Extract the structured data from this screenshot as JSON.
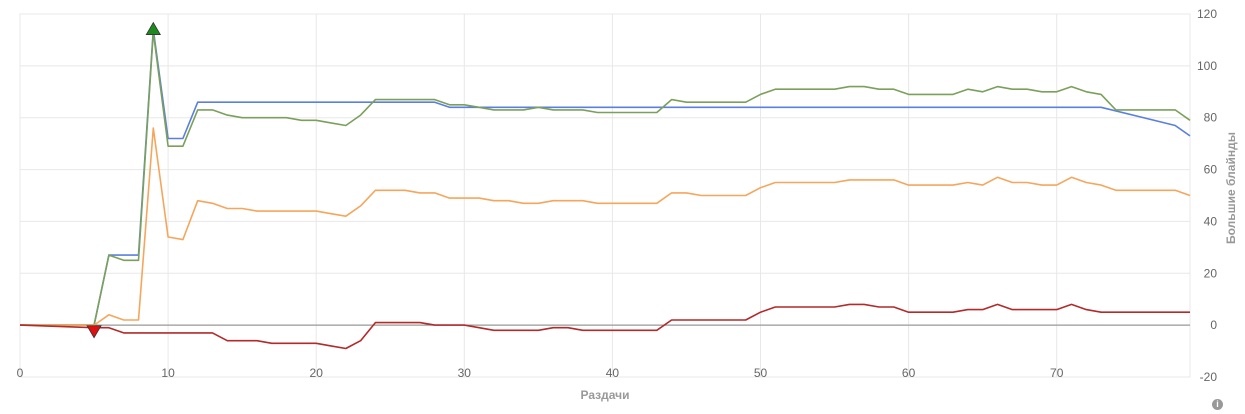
{
  "chart_data": {
    "type": "line",
    "xlabel": "Раздачи",
    "ylabel": "Большие блайнды",
    "xlim": [
      0,
      79
    ],
    "ylim": [
      -20,
      120
    ],
    "x_ticks": [
      0,
      10,
      20,
      30,
      40,
      50,
      60,
      70
    ],
    "y_ticks": [
      -20,
      0,
      20,
      40,
      60,
      80,
      100,
      120
    ],
    "grid": true,
    "legend": "none",
    "series": [
      {
        "color": "#5b7fe0",
        "x": [
          0,
          5,
          6,
          8,
          9,
          10,
          11,
          12,
          28,
          29,
          73,
          78,
          79
        ],
        "values": [
          0,
          0,
          27,
          27,
          114,
          72,
          72,
          86,
          86,
          84,
          84,
          77,
          73
        ]
      },
      {
        "color": "#7ba05b",
        "x": [
          0,
          5,
          6,
          7,
          8,
          9,
          10,
          11,
          12,
          13,
          14,
          15,
          16,
          17,
          18,
          19,
          20,
          21,
          22,
          23,
          24,
          25,
          26,
          27,
          28,
          29,
          30,
          31,
          32,
          33,
          34,
          35,
          36,
          37,
          38,
          39,
          40,
          41,
          42,
          43,
          44,
          45,
          46,
          47,
          48,
          49,
          50,
          51,
          52,
          53,
          54,
          55,
          56,
          57,
          58,
          59,
          60,
          61,
          62,
          63,
          64,
          65,
          66,
          67,
          68,
          69,
          70,
          71,
          72,
          73,
          74,
          75,
          76,
          77,
          78,
          79
        ],
        "values": [
          0,
          0,
          27,
          25,
          25,
          113,
          69,
          69,
          83,
          83,
          81,
          80,
          80,
          80,
          80,
          79,
          79,
          78,
          77,
          81,
          87,
          87,
          87,
          87,
          87,
          85,
          85,
          84,
          83,
          83,
          83,
          84,
          83,
          83,
          83,
          82,
          82,
          82,
          82,
          82,
          87,
          86,
          86,
          86,
          86,
          86,
          89,
          91,
          91,
          91,
          91,
          91,
          92,
          92,
          91,
          91,
          89,
          89,
          89,
          89,
          91,
          90,
          92,
          91,
          91,
          90,
          90,
          92,
          90,
          89,
          83,
          83,
          83,
          83,
          83,
          79
        ]
      },
      {
        "color": "#f5a65c",
        "x": [
          0,
          5,
          6,
          7,
          8,
          9,
          10,
          11,
          12,
          13,
          14,
          15,
          16,
          17,
          18,
          19,
          20,
          21,
          22,
          23,
          24,
          25,
          26,
          27,
          28,
          29,
          30,
          31,
          32,
          33,
          34,
          35,
          36,
          37,
          38,
          39,
          40,
          41,
          42,
          43,
          44,
          45,
          46,
          47,
          48,
          49,
          50,
          51,
          52,
          53,
          54,
          55,
          56,
          57,
          58,
          59,
          60,
          61,
          62,
          63,
          64,
          65,
          66,
          67,
          68,
          69,
          70,
          71,
          72,
          73,
          74,
          75,
          76,
          77,
          78,
          79
        ],
        "values": [
          0,
          0,
          4,
          2,
          2,
          76,
          34,
          33,
          48,
          47,
          45,
          45,
          44,
          44,
          44,
          44,
          44,
          43,
          42,
          46,
          52,
          52,
          52,
          51,
          51,
          49,
          49,
          49,
          48,
          48,
          47,
          47,
          48,
          48,
          48,
          47,
          47,
          47,
          47,
          47,
          51,
          51,
          50,
          50,
          50,
          50,
          53,
          55,
          55,
          55,
          55,
          55,
          56,
          56,
          56,
          56,
          54,
          54,
          54,
          54,
          55,
          54,
          57,
          55,
          55,
          54,
          54,
          57,
          55,
          54,
          52,
          52,
          52,
          52,
          52,
          50
        ]
      },
      {
        "color": "#b22a2a",
        "x": [
          0,
          5,
          6,
          7,
          8,
          9,
          10,
          11,
          12,
          13,
          14,
          15,
          16,
          17,
          18,
          19,
          20,
          21,
          22,
          23,
          24,
          25,
          26,
          27,
          28,
          29,
          30,
          31,
          32,
          33,
          34,
          35,
          36,
          37,
          38,
          39,
          40,
          41,
          42,
          43,
          44,
          45,
          46,
          47,
          48,
          49,
          50,
          51,
          52,
          53,
          54,
          55,
          56,
          57,
          58,
          59,
          60,
          61,
          62,
          63,
          64,
          65,
          66,
          67,
          68,
          69,
          70,
          71,
          72,
          73,
          74,
          75,
          76,
          77,
          78,
          79
        ],
        "values": [
          0,
          -1,
          -1,
          -3,
          -3,
          -3,
          -3,
          -3,
          -3,
          -3,
          -6,
          -6,
          -6,
          -7,
          -7,
          -7,
          -7,
          -8,
          -9,
          -6,
          1,
          1,
          1,
          1,
          0,
          0,
          0,
          -1,
          -2,
          -2,
          -2,
          -2,
          -1,
          -1,
          -2,
          -2,
          -2,
          -2,
          -2,
          -2,
          2,
          2,
          2,
          2,
          2,
          2,
          5,
          7,
          7,
          7,
          7,
          7,
          8,
          8,
          7,
          7,
          5,
          5,
          5,
          5,
          6,
          6,
          8,
          6,
          6,
          6,
          6,
          8,
          6,
          5,
          5,
          5,
          5,
          5,
          5,
          5
        ]
      }
    ],
    "markers": [
      {
        "type": "peak",
        "x": 9,
        "y": 114,
        "color": "#1e8a1e"
      },
      {
        "type": "trough",
        "x": 5,
        "y": -1,
        "color": "#dd1111"
      }
    ]
  },
  "info_icon_glyph": "i",
  "colors": {
    "grid": "#e8e8e8",
    "zero_line": "#999999",
    "tick_text": "#666666",
    "axis_title": "#999999"
  }
}
